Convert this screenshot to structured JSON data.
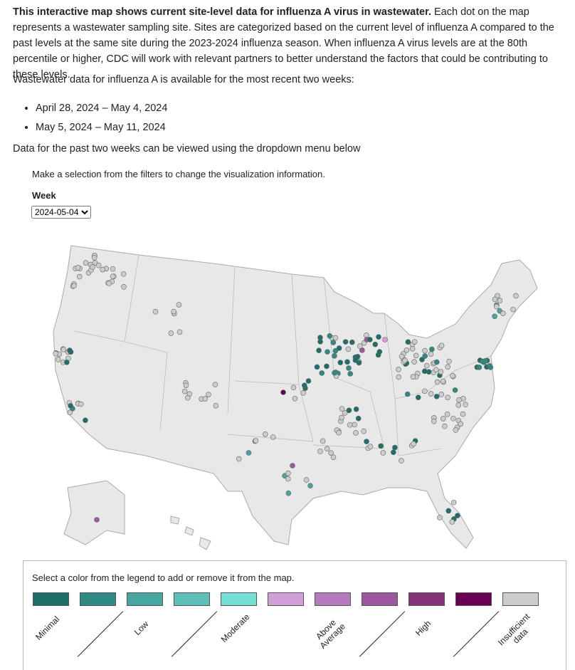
{
  "intro": {
    "lead": "This interactive map shows current site-level data for influenza A virus in wastewater.",
    "body": " Each dot on the map represents a wastewater sampling site. Sites are categorized based on the current level of influenza A compared to the past levels at the same site during the 2023-2024 influenza season. When influenza A virus levels are at the 80th percentile or higher, CDC will work with relevant partners to better understand the factors that could be contributing to these levels."
  },
  "availability": "Wastewater data for influenza A is available for the most recent two weeks:",
  "weeks": [
    "April 28, 2024 – May 4, 2024",
    "May 5, 2024 – May 11, 2024"
  ],
  "dropdown_note": "Data for the past two weeks can be viewed using the dropdown menu below",
  "filters_note": "Make a selection from the filters to change the visualization information.",
  "week_filter": {
    "label": "Week",
    "selected": "2024-05-04"
  },
  "legend": {
    "instruction": "Select a color from the legend to add or remove it from the map.",
    "colors": [
      "#1e6e69",
      "#2e8a83",
      "#48a6a0",
      "#5cc0b8",
      "#74e0d4",
      "#d29fd8",
      "#b679c0",
      "#9c57a0",
      "#843377",
      "#6a0055",
      "#cccccc"
    ],
    "labels": [
      "Minimal",
      null,
      "Low",
      null,
      "Moderate",
      null,
      "Above Average",
      null,
      "High",
      null,
      "Insufficient data"
    ]
  }
}
